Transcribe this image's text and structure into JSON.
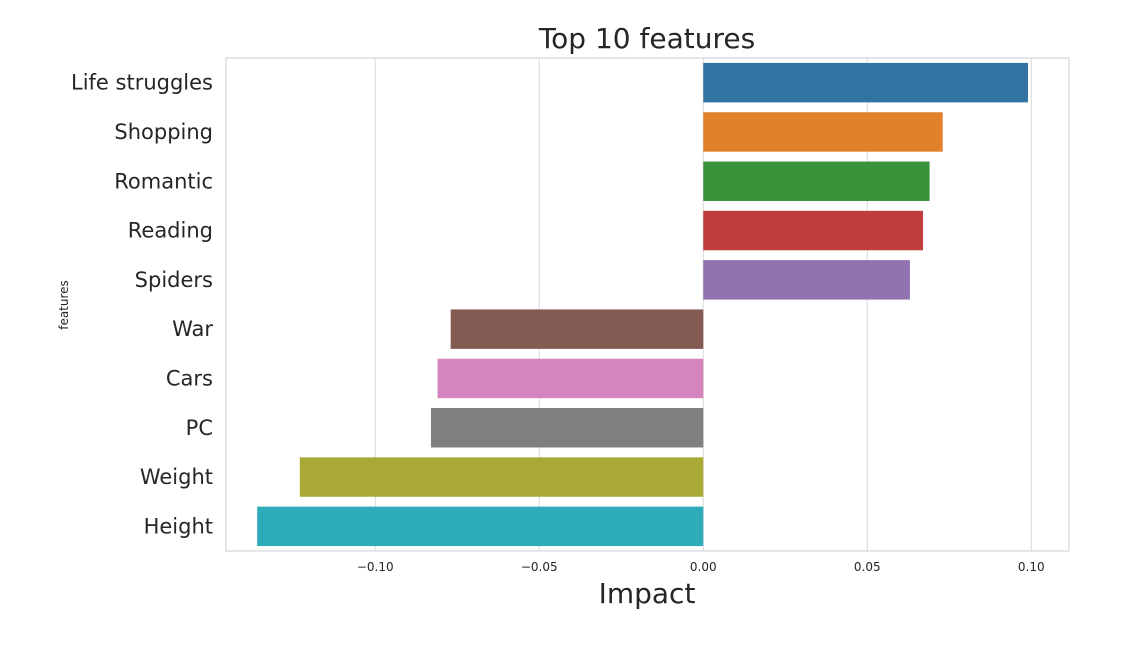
{
  "chart_data": {
    "type": "bar",
    "orientation": "horizontal",
    "title": "Top 10 features",
    "xlabel": "Impact",
    "ylabel": "features",
    "xlim": [
      -0.1455,
      0.1115
    ],
    "xticks": [
      -0.1,
      -0.05,
      0.0,
      0.05,
      0.1
    ],
    "xtick_labels": [
      "−0.10",
      "−0.05",
      "0.00",
      "0.05",
      "0.10"
    ],
    "grid": "vertical",
    "categories": [
      "Life struggles",
      "Shopping",
      "Romantic",
      "Reading",
      "Spiders",
      "War",
      "Cars",
      "PC",
      "Weight",
      "Height"
    ],
    "values": [
      0.099,
      0.073,
      0.069,
      0.067,
      0.063,
      -0.077,
      -0.081,
      -0.083,
      -0.123,
      -0.136
    ],
    "colors": [
      "#3274a1",
      "#e1812c",
      "#3a923a",
      "#c03d3e",
      "#9372b2",
      "#845b53",
      "#d684bd",
      "#7f7f7f",
      "#a9aa35",
      "#2eabb8"
    ]
  }
}
